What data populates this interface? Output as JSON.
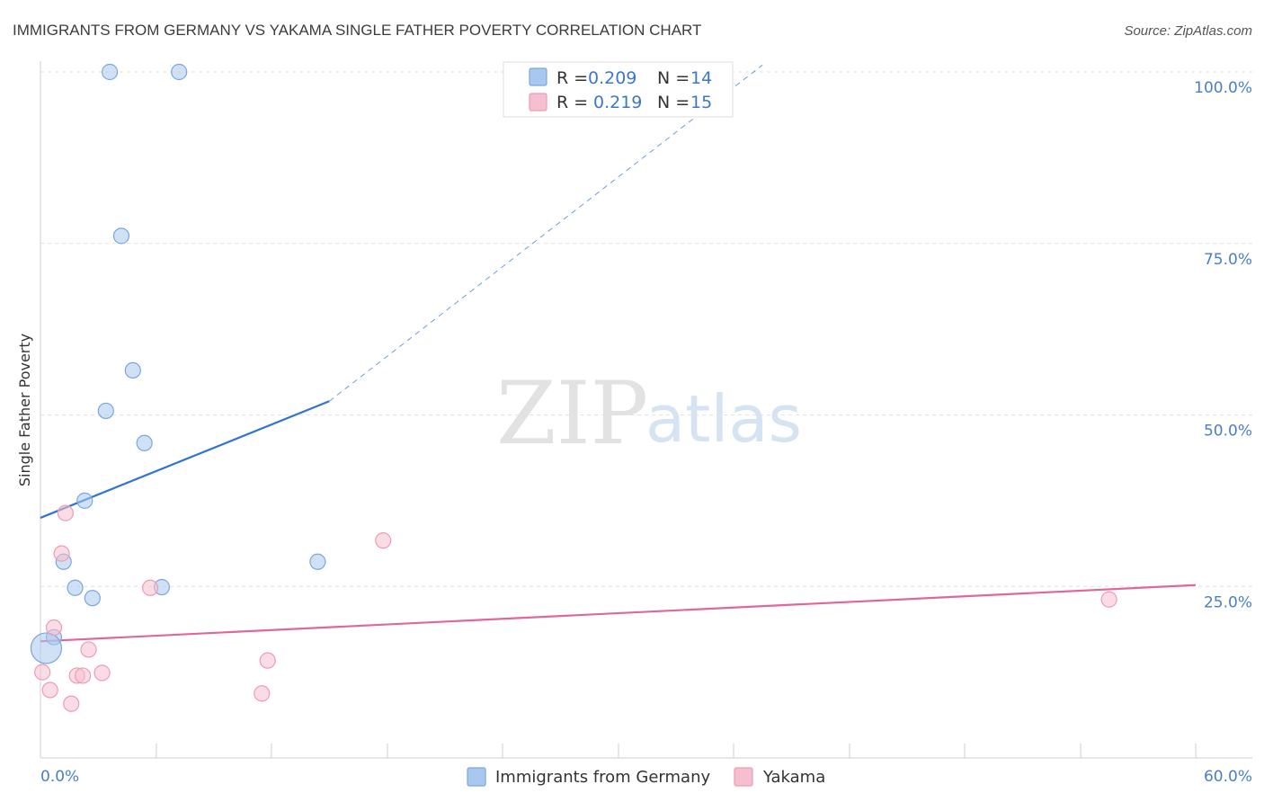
{
  "chart_data": {
    "type": "scatter",
    "title": "IMMIGRANTS FROM GERMANY VS YAKAMA SINGLE FATHER POVERTY CORRELATION CHART",
    "source": "Source: ZipAtlas.com",
    "xlabel": "",
    "ylabel": "Single Father Poverty",
    "xlim": [
      0,
      60
    ],
    "ylim": [
      0,
      100
    ],
    "x_tick_labels": [
      "0.0%",
      "60.0%"
    ],
    "y_ticks": [
      {
        "value": 25,
        "label": "25.0%"
      },
      {
        "value": 50,
        "label": "50.0%"
      },
      {
        "value": 75,
        "label": "75.0%"
      },
      {
        "value": 100,
        "label": "100.0%"
      }
    ],
    "grid": true,
    "watermark": {
      "part1": "ZIP",
      "part2": "atlas"
    },
    "legend": {
      "r_label": "R =",
      "n_label": "N =",
      "position": "top-center"
    },
    "series": [
      {
        "name": "Immigrants from Germany",
        "color": "#a9c8ee",
        "stroke": "#7aa6dd",
        "line_color": "#2f74d0",
        "value_color": "#3b78c9",
        "r_value": "0.209",
        "n_value": "14",
        "trend": {
          "x0": 0,
          "y0": 35.0,
          "x1": 15.0,
          "y1": 52.0,
          "dash_x1": 37.5,
          "dash_y1": 101.0
        },
        "points": [
          {
            "x": 3.6,
            "y": 100.0,
            "s": 1
          },
          {
            "x": 7.2,
            "y": 100.0,
            "s": 1
          },
          {
            "x": 4.2,
            "y": 76.1,
            "s": 1
          },
          {
            "x": 4.8,
            "y": 56.5,
            "s": 1
          },
          {
            "x": 3.4,
            "y": 50.6,
            "s": 1
          },
          {
            "x": 5.4,
            "y": 45.9,
            "s": 1
          },
          {
            "x": 2.3,
            "y": 37.5,
            "s": 1
          },
          {
            "x": 1.2,
            "y": 28.6,
            "s": 1
          },
          {
            "x": 14.4,
            "y": 28.6,
            "s": 1
          },
          {
            "x": 1.8,
            "y": 24.8,
            "s": 1
          },
          {
            "x": 6.3,
            "y": 24.9,
            "s": 1
          },
          {
            "x": 2.7,
            "y": 23.3,
            "s": 1
          },
          {
            "x": 0.7,
            "y": 17.6,
            "s": 1
          },
          {
            "x": 0.3,
            "y": 16.0,
            "s": 2
          }
        ]
      },
      {
        "name": "Yakama",
        "color": "#f6bfd0",
        "stroke": "#ee9bb6",
        "line_color": "#e0679a",
        "value_color": "#3b78c9",
        "r_value": "0.219",
        "n_value": "15",
        "trend": {
          "x0": 0,
          "y0": 17.0,
          "x1": 60.0,
          "y1": 25.2
        },
        "points": [
          {
            "x": 1.3,
            "y": 35.7,
            "s": 1
          },
          {
            "x": 1.1,
            "y": 29.8,
            "s": 1
          },
          {
            "x": 17.8,
            "y": 31.7,
            "s": 1
          },
          {
            "x": 5.7,
            "y": 24.8,
            "s": 1
          },
          {
            "x": 55.5,
            "y": 23.1,
            "s": 1
          },
          {
            "x": 0.7,
            "y": 19.0,
            "s": 1
          },
          {
            "x": 2.5,
            "y": 15.8,
            "s": 1
          },
          {
            "x": 11.8,
            "y": 14.2,
            "s": 1
          },
          {
            "x": 0.1,
            "y": 12.5,
            "s": 1
          },
          {
            "x": 1.9,
            "y": 12.0,
            "s": 1
          },
          {
            "x": 2.2,
            "y": 12.0,
            "s": 1
          },
          {
            "x": 3.2,
            "y": 12.4,
            "s": 1
          },
          {
            "x": 0.5,
            "y": 9.9,
            "s": 1
          },
          {
            "x": 11.5,
            "y": 9.4,
            "s": 1
          },
          {
            "x": 1.6,
            "y": 7.9,
            "s": 1
          }
        ]
      }
    ]
  }
}
